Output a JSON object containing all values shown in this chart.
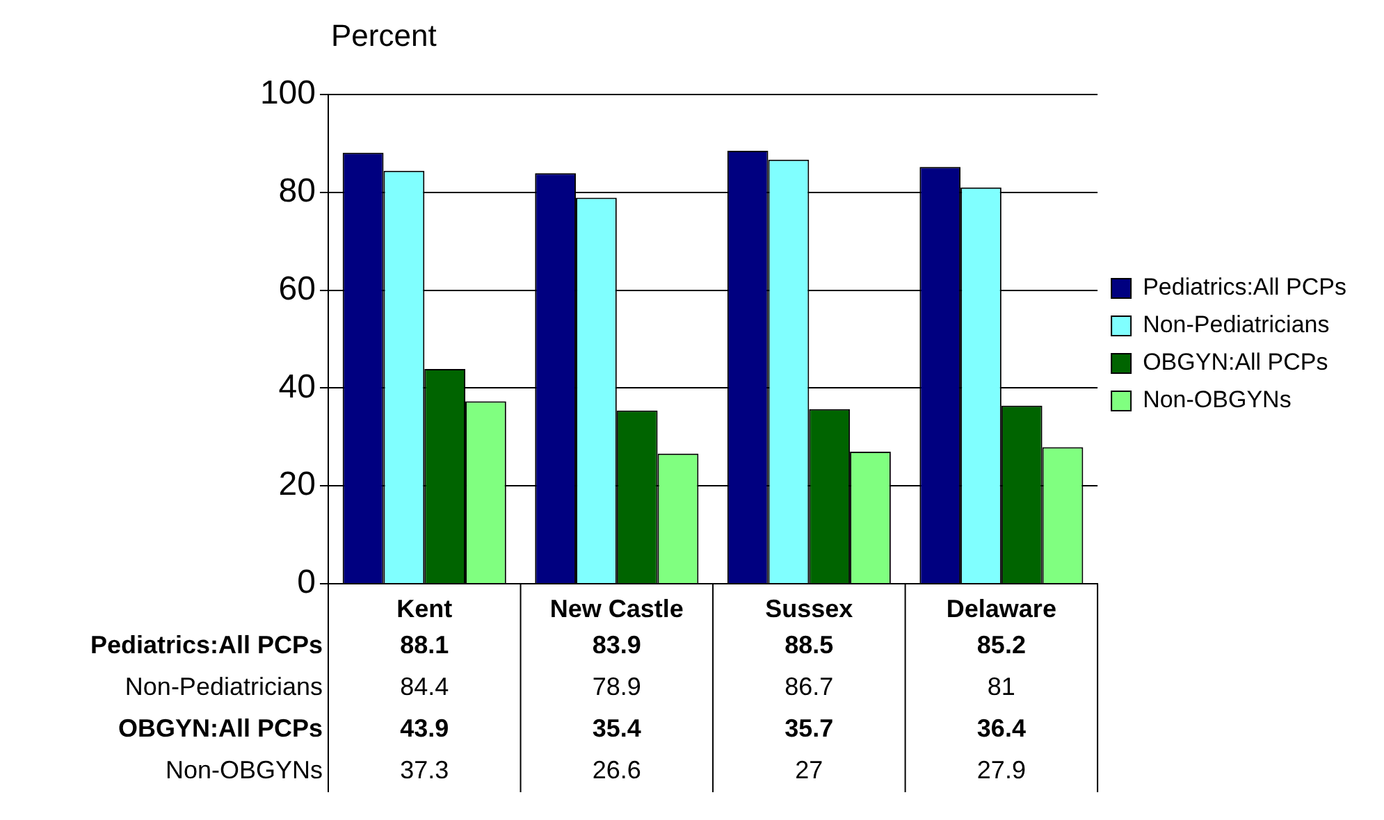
{
  "chart_data": {
    "type": "bar",
    "ylabel": "Percent",
    "categories": [
      "Kent",
      "New Castle",
      "Sussex",
      "Delaware"
    ],
    "series": [
      {
        "name": "Pediatrics:All PCPs",
        "color": "#000080",
        "values": [
          88.1,
          83.9,
          88.5,
          85.2
        ]
      },
      {
        "name": "Non-Pediatricians",
        "color": "#80ffff",
        "values": [
          84.4,
          78.9,
          86.7,
          81
        ]
      },
      {
        "name": "OBGYN:All PCPs",
        "color": "#006400",
        "values": [
          43.9,
          35.4,
          35.7,
          36.4
        ]
      },
      {
        "name": "Non-OBGYNs",
        "color": "#80ff80",
        "values": [
          37.3,
          26.6,
          27,
          27.9
        ]
      }
    ],
    "ylim": [
      0,
      100
    ],
    "yticks": [
      0,
      20,
      40,
      60,
      80,
      100
    ],
    "grid": "y",
    "legend": "right",
    "data_labels": true
  }
}
